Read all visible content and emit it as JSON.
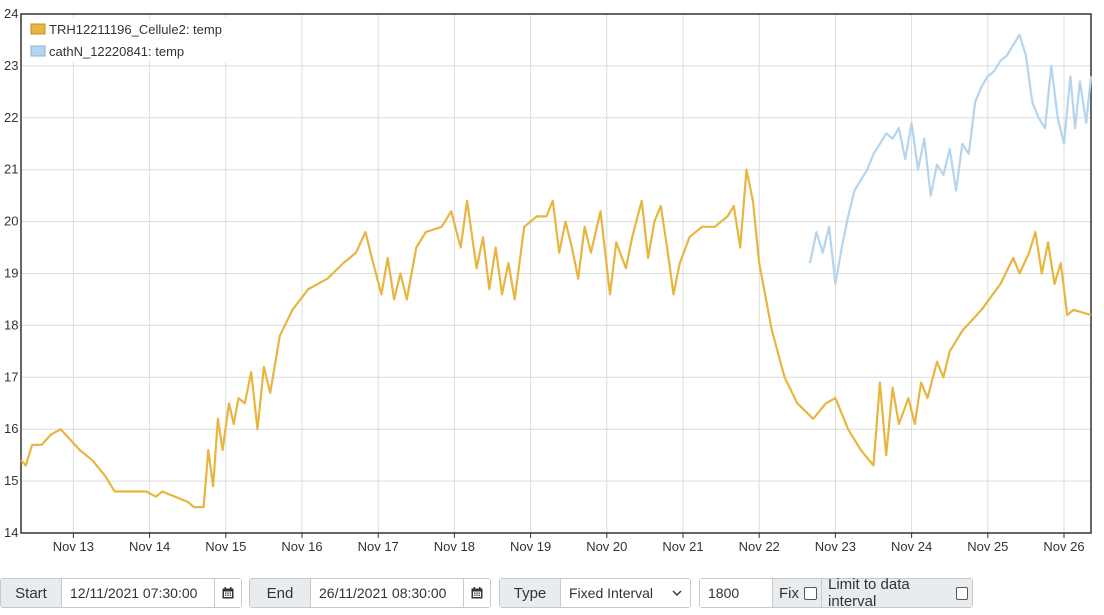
{
  "chart_data": {
    "type": "line",
    "title": "",
    "xlabel": "",
    "ylabel": "",
    "ylim": [
      14,
      24
    ],
    "yticks": [
      14,
      15,
      16,
      17,
      18,
      19,
      20,
      21,
      22,
      23,
      24
    ],
    "xlim": [
      "2021-11-12T07:30",
      "2021-11-26T08:30"
    ],
    "xticks": [
      {
        "date": "2021-11-13T00:00",
        "label": "Nov 13"
      },
      {
        "date": "2021-11-14T00:00",
        "label": "Nov 14"
      },
      {
        "date": "2021-11-15T00:00",
        "label": "Nov 15"
      },
      {
        "date": "2021-11-16T00:00",
        "label": "Nov 16"
      },
      {
        "date": "2021-11-17T00:00",
        "label": "Nov 17"
      },
      {
        "date": "2021-11-18T00:00",
        "label": "Nov 18"
      },
      {
        "date": "2021-11-19T00:00",
        "label": "Nov 19"
      },
      {
        "date": "2021-11-20T00:00",
        "label": "Nov 20"
      },
      {
        "date": "2021-11-21T00:00",
        "label": "Nov 21"
      },
      {
        "date": "2021-11-22T00:00",
        "label": "Nov 22"
      },
      {
        "date": "2021-11-23T00:00",
        "label": "Nov 23"
      },
      {
        "date": "2021-11-24T00:00",
        "label": "Nov 24"
      },
      {
        "date": "2021-11-25T00:00",
        "label": "Nov 25"
      },
      {
        "date": "2021-11-26T00:00",
        "label": "Nov 26"
      }
    ],
    "grid": true,
    "legend_position": "top-left",
    "series": [
      {
        "name": "TRH12211196_Cellule2: temp",
        "color": "#e8b640",
        "points": [
          [
            "2021-11-12T07:30",
            15.4
          ],
          [
            "2021-11-12T09:00",
            15.3
          ],
          [
            "2021-11-12T11:00",
            15.7
          ],
          [
            "2021-11-12T14:00",
            15.7
          ],
          [
            "2021-11-12T17:00",
            15.9
          ],
          [
            "2021-11-12T20:00",
            16.0
          ],
          [
            "2021-11-12T23:00",
            15.8
          ],
          [
            "2021-11-13T02:00",
            15.6
          ],
          [
            "2021-11-13T06:00",
            15.4
          ],
          [
            "2021-11-13T10:00",
            15.1
          ],
          [
            "2021-11-13T13:00",
            14.8
          ],
          [
            "2021-11-13T18:00",
            14.8
          ],
          [
            "2021-11-13T23:00",
            14.8
          ],
          [
            "2021-11-14T02:00",
            14.7
          ],
          [
            "2021-11-14T04:00",
            14.8
          ],
          [
            "2021-11-14T08:00",
            14.7
          ],
          [
            "2021-11-14T12:00",
            14.6
          ],
          [
            "2021-11-14T14:00",
            14.5
          ],
          [
            "2021-11-14T17:00",
            14.5
          ],
          [
            "2021-11-14T18:30",
            15.6
          ],
          [
            "2021-11-14T20:00",
            14.9
          ],
          [
            "2021-11-14T21:30",
            16.2
          ],
          [
            "2021-11-14T23:00",
            15.6
          ],
          [
            "2021-11-15T01:00",
            16.5
          ],
          [
            "2021-11-15T02:30",
            16.1
          ],
          [
            "2021-11-15T04:00",
            16.6
          ],
          [
            "2021-11-15T06:00",
            16.5
          ],
          [
            "2021-11-15T08:00",
            17.1
          ],
          [
            "2021-11-15T10:00",
            16.0
          ],
          [
            "2021-11-15T12:00",
            17.2
          ],
          [
            "2021-11-15T14:00",
            16.7
          ],
          [
            "2021-11-15T17:00",
            17.8
          ],
          [
            "2021-11-15T21:00",
            18.3
          ],
          [
            "2021-11-16T02:00",
            18.7
          ],
          [
            "2021-11-16T08:00",
            18.9
          ],
          [
            "2021-11-16T13:00",
            19.2
          ],
          [
            "2021-11-16T17:00",
            19.4
          ],
          [
            "2021-11-16T20:00",
            19.8
          ],
          [
            "2021-11-16T22:00",
            19.3
          ],
          [
            "2021-11-17T01:00",
            18.6
          ],
          [
            "2021-11-17T03:00",
            19.3
          ],
          [
            "2021-11-17T05:00",
            18.5
          ],
          [
            "2021-11-17T07:00",
            19.0
          ],
          [
            "2021-11-17T09:00",
            18.5
          ],
          [
            "2021-11-17T12:00",
            19.5
          ],
          [
            "2021-11-17T15:00",
            19.8
          ],
          [
            "2021-11-17T20:00",
            19.9
          ],
          [
            "2021-11-17T23:00",
            20.2
          ],
          [
            "2021-11-18T02:00",
            19.5
          ],
          [
            "2021-11-18T04:00",
            20.4
          ],
          [
            "2021-11-18T07:00",
            19.1
          ],
          [
            "2021-11-18T09:00",
            19.7
          ],
          [
            "2021-11-18T11:00",
            18.7
          ],
          [
            "2021-11-18T13:00",
            19.5
          ],
          [
            "2021-11-18T15:00",
            18.6
          ],
          [
            "2021-11-18T17:00",
            19.2
          ],
          [
            "2021-11-18T19:00",
            18.5
          ],
          [
            "2021-11-18T22:00",
            19.9
          ],
          [
            "2021-11-19T02:00",
            20.1
          ],
          [
            "2021-11-19T05:00",
            20.1
          ],
          [
            "2021-11-19T07:00",
            20.4
          ],
          [
            "2021-11-19T09:00",
            19.4
          ],
          [
            "2021-11-19T11:00",
            20.0
          ],
          [
            "2021-11-19T13:00",
            19.5
          ],
          [
            "2021-11-19T15:00",
            18.9
          ],
          [
            "2021-11-19T17:00",
            19.9
          ],
          [
            "2021-11-19T19:00",
            19.4
          ],
          [
            "2021-11-19T22:00",
            20.2
          ],
          [
            "2021-11-20T01:00",
            18.6
          ],
          [
            "2021-11-20T03:00",
            19.6
          ],
          [
            "2021-11-20T06:00",
            19.1
          ],
          [
            "2021-11-20T08:00",
            19.7
          ],
          [
            "2021-11-20T11:00",
            20.4
          ],
          [
            "2021-11-20T13:00",
            19.3
          ],
          [
            "2021-11-20T15:00",
            20.0
          ],
          [
            "2021-11-20T17:00",
            20.3
          ],
          [
            "2021-11-20T19:00",
            19.5
          ],
          [
            "2021-11-20T21:00",
            18.6
          ],
          [
            "2021-11-20T23:00",
            19.2
          ],
          [
            "2021-11-21T02:00",
            19.7
          ],
          [
            "2021-11-21T06:00",
            19.9
          ],
          [
            "2021-11-21T10:00",
            19.9
          ],
          [
            "2021-11-21T14:00",
            20.1
          ],
          [
            "2021-11-21T16:00",
            20.3
          ],
          [
            "2021-11-21T18:00",
            19.5
          ],
          [
            "2021-11-21T20:00",
            21.0
          ],
          [
            "2021-11-21T22:00",
            20.4
          ],
          [
            "2021-11-22T00:00",
            19.2
          ],
          [
            "2021-11-22T04:00",
            17.9
          ],
          [
            "2021-11-22T08:00",
            17.0
          ],
          [
            "2021-11-22T12:00",
            16.5
          ],
          [
            "2021-11-22T17:00",
            16.2
          ],
          [
            "2021-11-22T21:00",
            16.5
          ],
          [
            "2021-11-23T00:00",
            16.6
          ],
          [
            "2021-11-23T04:00",
            16.0
          ],
          [
            "2021-11-23T08:00",
            15.6
          ],
          [
            "2021-11-23T12:00",
            15.3
          ],
          [
            "2021-11-23T14:00",
            16.9
          ],
          [
            "2021-11-23T16:00",
            15.5
          ],
          [
            "2021-11-23T18:00",
            16.8
          ],
          [
            "2021-11-23T20:00",
            16.1
          ],
          [
            "2021-11-23T23:00",
            16.6
          ],
          [
            "2021-11-24T01:00",
            16.1
          ],
          [
            "2021-11-24T03:00",
            16.9
          ],
          [
            "2021-11-24T05:00",
            16.6
          ],
          [
            "2021-11-24T08:00",
            17.3
          ],
          [
            "2021-11-24T10:00",
            17.0
          ],
          [
            "2021-11-24T12:00",
            17.5
          ],
          [
            "2021-11-24T16:00",
            17.9
          ],
          [
            "2021-11-24T22:00",
            18.3
          ],
          [
            "2021-11-25T04:00",
            18.8
          ],
          [
            "2021-11-25T08:00",
            19.3
          ],
          [
            "2021-11-25T10:00",
            19.0
          ],
          [
            "2021-11-25T13:00",
            19.4
          ],
          [
            "2021-11-25T15:00",
            19.8
          ],
          [
            "2021-11-25T17:00",
            19.0
          ],
          [
            "2021-11-25T19:00",
            19.6
          ],
          [
            "2021-11-25T21:00",
            18.8
          ],
          [
            "2021-11-25T23:00",
            19.2
          ],
          [
            "2021-11-26T01:00",
            18.2
          ],
          [
            "2021-11-26T03:00",
            18.3
          ],
          [
            "2021-11-26T08:30",
            18.2
          ]
        ]
      },
      {
        "name": "cathN_12220841: temp",
        "color": "#b5d5ee",
        "points": []
      }
    ]
  },
  "controls": {
    "start_label": "Start",
    "start_value": "12/11/2021 07:30:00",
    "end_label": "End",
    "end_value": "26/11/2021 08:30:00",
    "type_label": "Type",
    "type_value": "Fixed Interval",
    "interval_value": "1800",
    "fix_label": "Fix",
    "limit_label": "Limit to data interval"
  }
}
